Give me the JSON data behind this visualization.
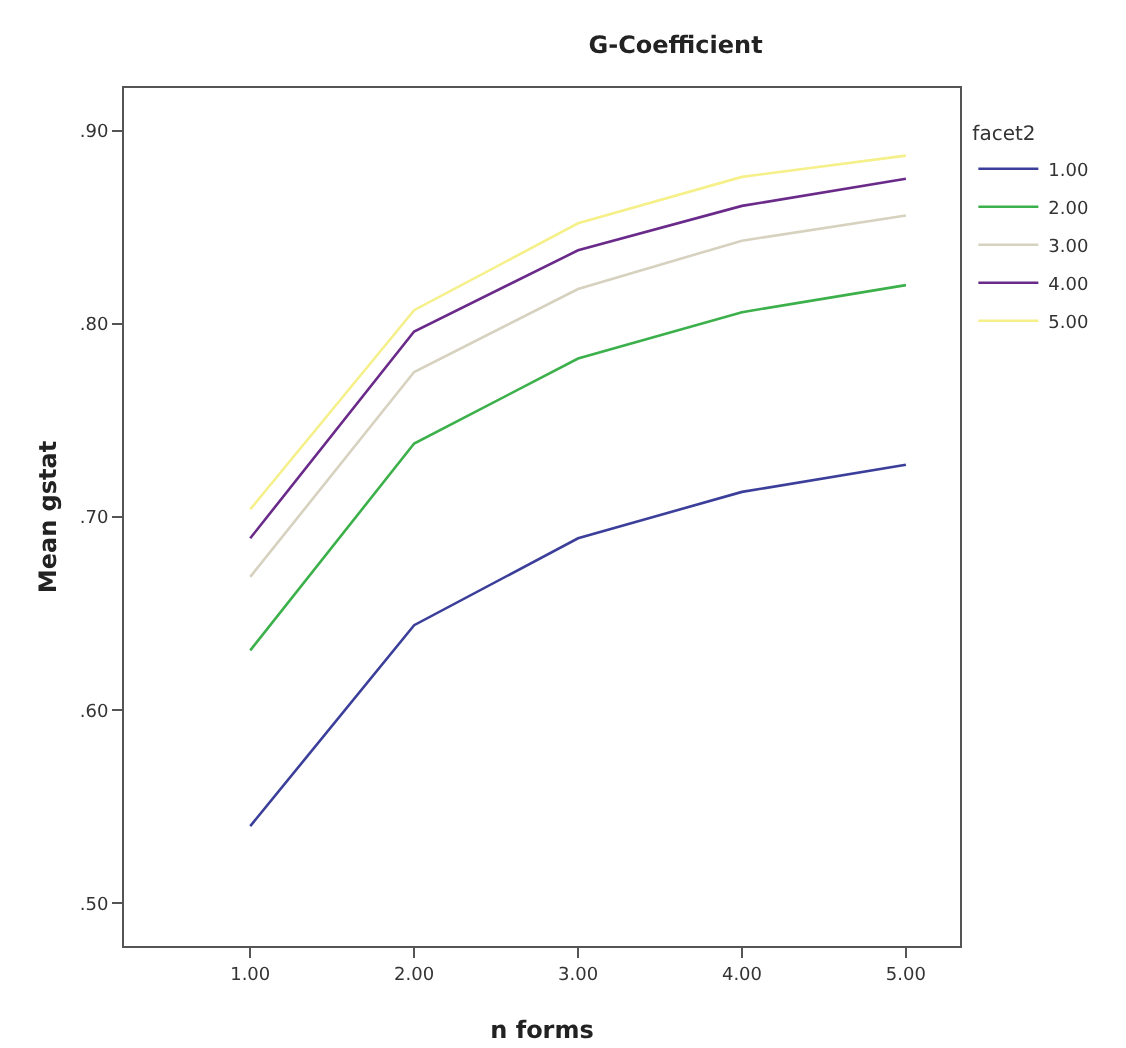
{
  "chart_data": {
    "type": "line",
    "title": "G-Coefficient",
    "xlabel": "n forms",
    "ylabel": "Mean gstat",
    "legend_title": "facet2",
    "legend": "right",
    "x": [
      1,
      2,
      3,
      4,
      5
    ],
    "xlim": [
      0.23,
      5.33
    ],
    "xticks": [
      {
        "value": 1,
        "label": "1.00"
      },
      {
        "value": 2,
        "label": "2.00"
      },
      {
        "value": 3,
        "label": "3.00"
      },
      {
        "value": 4,
        "label": "4.00"
      },
      {
        "value": 5,
        "label": "5.00"
      }
    ],
    "ylim": [
      0.478,
      0.922
    ],
    "yticks": [
      {
        "value": 0.5,
        "label": ".50"
      },
      {
        "value": 0.6,
        "label": ".60"
      },
      {
        "value": 0.7,
        "label": ".70"
      },
      {
        "value": 0.8,
        "label": ".80"
      },
      {
        "value": 0.9,
        "label": ".90"
      }
    ],
    "grid": false,
    "marker": "none",
    "line_style": "solid",
    "series": [
      {
        "name": "1.00",
        "color": "#3b3f9a",
        "values": [
          0.54,
          0.644,
          0.689,
          0.713,
          0.727
        ]
      },
      {
        "name": "2.00",
        "color": "#3cb04a",
        "values": [
          0.631,
          0.738,
          0.782,
          0.806,
          0.82
        ]
      },
      {
        "name": "3.00",
        "color": "#d6d2bf",
        "values": [
          0.669,
          0.775,
          0.818,
          0.843,
          0.856
        ]
      },
      {
        "name": "4.00",
        "color": "#6a2a8a",
        "values": [
          0.689,
          0.796,
          0.838,
          0.861,
          0.875
        ]
      },
      {
        "name": "5.00",
        "color": "#f5f08a",
        "values": [
          0.704,
          0.807,
          0.852,
          0.876,
          0.887
        ]
      }
    ]
  }
}
